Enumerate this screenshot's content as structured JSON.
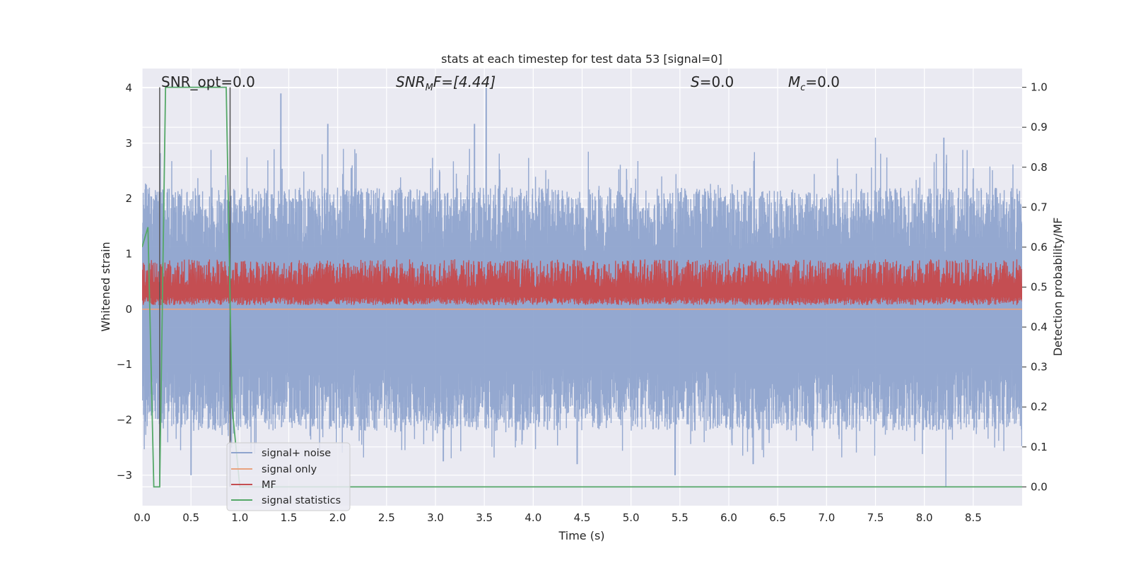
{
  "chart_data": {
    "type": "line",
    "title": "stats at each timestep for test data 53 [signal=0]",
    "xlabel": "Time (s)",
    "ylabel_left": "Whitened strain",
    "ylabel_right": "Detection probability/MF",
    "xlim": [
      0.0,
      9.0
    ],
    "ylim_left": [
      -3.55,
      4.35
    ],
    "ylim_right": [
      -0.047,
      1.047
    ],
    "grid": true,
    "x_ticks": [
      "0.0",
      "0.5",
      "1.0",
      "1.5",
      "2.0",
      "2.5",
      "3.0",
      "3.5",
      "4.0",
      "4.5",
      "5.0",
      "5.5",
      "6.0",
      "6.5",
      "7.0",
      "7.5",
      "8.0",
      "8.5"
    ],
    "y_left_ticks": [
      "4",
      "3",
      "2",
      "1",
      "0",
      "−1",
      "−2",
      "−3"
    ],
    "y_right_ticks": [
      "1.0",
      "0.9",
      "0.8",
      "0.7",
      "0.6",
      "0.5",
      "0.4",
      "0.3",
      "0.2",
      "0.1",
      "0.0"
    ],
    "annotations": {
      "snr_opt": "SNR_opt=0.0",
      "snr_mf_main": "SNR",
      "snr_mf_sub": "M",
      "snr_mf_rest": "F=[4.44]",
      "s_main": "S",
      "s_rest": "=0.0",
      "mc_main": "M",
      "mc_sub": "c",
      "mc_rest": "=0.0"
    },
    "legend": {
      "placement": "lower-left",
      "entries": [
        {
          "label": "signal+ noise",
          "color": "#8fa4cd"
        },
        {
          "label": "signal only",
          "color": "#e9a27f"
        },
        {
          "label": "MF",
          "color": "#c44e52"
        },
        {
          "label": "signal statistics",
          "color": "#55a868"
        }
      ]
    },
    "series": [
      {
        "name": "signal+ noise",
        "axis": "left",
        "color": "#8fa4cd",
        "description_range": [
          -3.2,
          4.0
        ],
        "peaks": [
          [
            1.42,
            3.9
          ],
          [
            1.9,
            3.35
          ],
          [
            3.4,
            3.35
          ],
          [
            3.52,
            4.0
          ],
          [
            7.5,
            3.1
          ],
          [
            8.2,
            3.1
          ]
        ],
        "troughs": [
          [
            0.5,
            -3.0
          ],
          [
            3.08,
            -2.75
          ],
          [
            4.45,
            -2.8
          ],
          [
            5.45,
            -3.0
          ],
          [
            6.25,
            -2.8
          ],
          [
            8.22,
            -3.2
          ]
        ]
      },
      {
        "name": "signal only",
        "axis": "left",
        "color": "#e9a27f",
        "x": [
          0.0,
          9.0
        ],
        "y": [
          0.0,
          0.0
        ]
      },
      {
        "name": "MF",
        "axis": "right",
        "color": "#c44e52",
        "base": 0.49,
        "upper_envelope": 0.57
      },
      {
        "name": "signal statistics",
        "axis": "right",
        "color": "#55a868",
        "x": [
          0.0,
          0.06,
          0.12,
          0.18,
          0.24,
          0.86,
          0.92,
          1.0,
          9.0
        ],
        "y": [
          0.6,
          0.65,
          0.0,
          0.0,
          1.0,
          1.0,
          0.2,
          0.0,
          0.0
        ]
      }
    ],
    "vlines": [
      {
        "x": 0.18,
        "color": "#555555"
      },
      {
        "x": 0.9,
        "color": "#555555"
      }
    ]
  }
}
